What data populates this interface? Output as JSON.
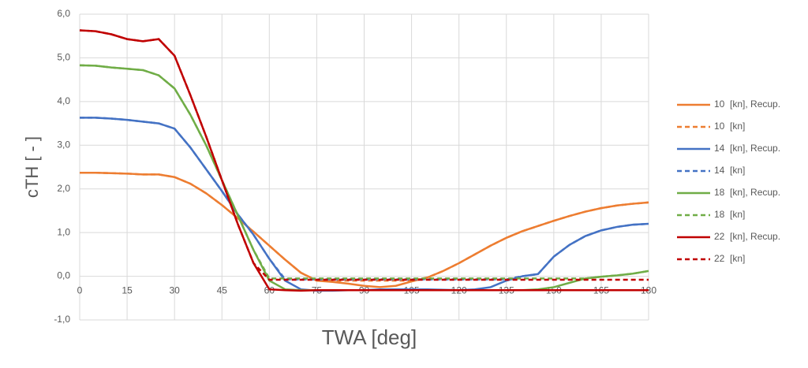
{
  "chart_data": {
    "type": "line",
    "x_label": "TWA [deg]",
    "y_label": "cTH [ - ]",
    "x": [
      0,
      5,
      10,
      15,
      20,
      25,
      30,
      35,
      40,
      45,
      50,
      55,
      60,
      65,
      70,
      75,
      80,
      85,
      90,
      95,
      100,
      105,
      110,
      115,
      120,
      125,
      130,
      135,
      140,
      145,
      150,
      155,
      160,
      165,
      170,
      175,
      180
    ],
    "xlim": [
      0,
      180
    ],
    "xticks": [
      0,
      15,
      30,
      45,
      60,
      75,
      90,
      105,
      120,
      135,
      150,
      165,
      180
    ],
    "ylim": [
      -1,
      6
    ],
    "yticks": [
      {
        "value": -1,
        "label": "-1,0"
      },
      {
        "value": 0,
        "label": "0,0"
      },
      {
        "value": 1,
        "label": "1,0"
      },
      {
        "value": 2,
        "label": "2,0"
      },
      {
        "value": 3,
        "label": "3,0"
      },
      {
        "value": 4,
        "label": "4,0"
      },
      {
        "value": 5,
        "label": "5,0"
      },
      {
        "value": 6,
        "label": "6,0"
      }
    ],
    "grid": true,
    "legend": "right",
    "series": [
      {
        "name": "10  [kn], Recup.",
        "color": "#ed7d31",
        "dashed": false,
        "values": [
          2.37,
          2.37,
          2.36,
          2.35,
          2.33,
          2.33,
          2.27,
          2.12,
          1.9,
          1.63,
          1.33,
          1.02,
          0.7,
          0.38,
          0.08,
          -0.1,
          -0.13,
          -0.17,
          -0.22,
          -0.25,
          -0.22,
          -0.12,
          -0.03,
          0.12,
          0.3,
          0.5,
          0.7,
          0.88,
          1.03,
          1.15,
          1.27,
          1.38,
          1.48,
          1.56,
          1.62,
          1.66,
          1.69
        ]
      },
      {
        "name": "10  [kn]",
        "color": "#ed7d31",
        "dashed": true,
        "values": [
          2.37,
          2.37,
          2.36,
          2.35,
          2.33,
          2.33,
          2.27,
          2.12,
          1.9,
          1.63,
          1.33,
          1.02,
          0.7,
          0.38,
          0.08,
          -0.1,
          -0.1,
          -0.1,
          -0.1,
          -0.1,
          -0.1,
          -0.1,
          -0.03,
          0.12,
          0.3,
          0.5,
          0.7,
          0.88,
          1.03,
          1.15,
          1.27,
          1.38,
          1.48,
          1.56,
          1.62,
          1.66,
          1.69
        ]
      },
      {
        "name": "14  [kn], Recup.",
        "color": "#4472c4",
        "dashed": false,
        "values": [
          3.63,
          3.63,
          3.61,
          3.58,
          3.54,
          3.5,
          3.38,
          2.95,
          2.45,
          1.95,
          1.42,
          0.95,
          0.4,
          -0.1,
          -0.3,
          -0.33,
          -0.33,
          -0.32,
          -0.32,
          -0.3,
          -0.3,
          -0.3,
          -0.3,
          -0.31,
          -0.32,
          -0.3,
          -0.25,
          -0.1,
          0,
          0.05,
          0.45,
          0.72,
          0.92,
          1.05,
          1.13,
          1.18,
          1.2
        ]
      },
      {
        "name": "14  [kn]",
        "color": "#4472c4",
        "dashed": true,
        "values": [
          3.63,
          3.63,
          3.61,
          3.58,
          3.54,
          3.5,
          3.38,
          2.95,
          2.45,
          1.95,
          1.42,
          0.95,
          0.4,
          -0.07,
          -0.07,
          -0.07,
          -0.07,
          -0.07,
          -0.07,
          -0.07,
          -0.07,
          -0.07,
          -0.07,
          -0.07,
          -0.07,
          -0.07,
          -0.07,
          -0.07,
          0,
          0.05,
          0.45,
          0.72,
          0.92,
          1.05,
          1.13,
          1.18,
          1.2
        ]
      },
      {
        "name": "18  [kn], Recup.",
        "color": "#70ad47",
        "dashed": false,
        "values": [
          4.83,
          4.82,
          4.78,
          4.75,
          4.72,
          4.6,
          4.3,
          3.7,
          3.0,
          2.2,
          1.4,
          0.6,
          -0.1,
          -0.3,
          -0.32,
          -0.32,
          -0.32,
          -0.32,
          -0.32,
          -0.32,
          -0.32,
          -0.32,
          -0.32,
          -0.32,
          -0.32,
          -0.32,
          -0.32,
          -0.32,
          -0.32,
          -0.3,
          -0.25,
          -0.15,
          -0.05,
          -0.01,
          0.02,
          0.06,
          0.12
        ]
      },
      {
        "name": "18  [kn]",
        "color": "#70ad47",
        "dashed": true,
        "values": [
          4.83,
          4.82,
          4.78,
          4.75,
          4.72,
          4.6,
          4.3,
          3.7,
          3.0,
          2.2,
          1.4,
          0.6,
          -0.05,
          -0.05,
          -0.05,
          -0.05,
          -0.05,
          -0.05,
          -0.05,
          -0.05,
          -0.05,
          -0.05,
          -0.05,
          -0.05,
          -0.05,
          -0.05,
          -0.05,
          -0.05,
          -0.05,
          -0.05,
          -0.05,
          -0.05,
          -0.05,
          -0.01,
          0.02,
          0.06,
          0.12
        ]
      },
      {
        "name": "22  [kn], Recup.",
        "color": "#c00000",
        "dashed": false,
        "values": [
          5.63,
          5.61,
          5.54,
          5.43,
          5.38,
          5.43,
          5.05,
          4.15,
          3.2,
          2.2,
          1.2,
          0.3,
          -0.3,
          -0.32,
          -0.33,
          -0.32,
          -0.32,
          -0.32,
          -0.32,
          -0.32,
          -0.32,
          -0.32,
          -0.32,
          -0.32,
          -0.32,
          -0.32,
          -0.32,
          -0.32,
          -0.32,
          -0.32,
          -0.32,
          -0.32,
          -0.32,
          -0.32,
          -0.32,
          -0.32,
          -0.32
        ]
      },
      {
        "name": "22  [kn]",
        "color": "#c00000",
        "dashed": true,
        "values": [
          5.63,
          5.61,
          5.54,
          5.43,
          5.38,
          5.43,
          5.05,
          4.15,
          3.2,
          2.2,
          1.2,
          0.3,
          -0.08,
          -0.08,
          -0.08,
          -0.08,
          -0.08,
          -0.08,
          -0.08,
          -0.08,
          -0.08,
          -0.08,
          -0.08,
          -0.08,
          -0.08,
          -0.08,
          -0.08,
          -0.08,
          -0.08,
          -0.08,
          -0.08,
          -0.08,
          -0.08,
          -0.08,
          -0.08,
          -0.08,
          -0.08
        ]
      }
    ]
  }
}
